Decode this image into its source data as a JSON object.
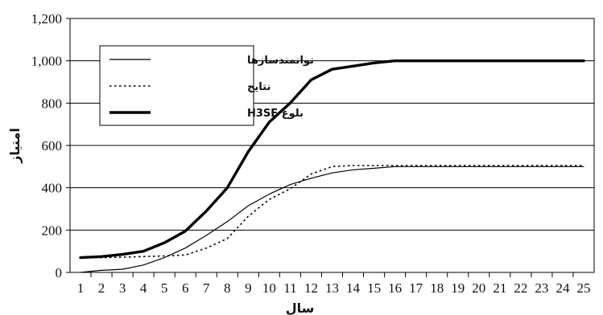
{
  "chart_data": {
    "type": "line",
    "title": "",
    "xlabel": "سال",
    "ylabel": "امتیاز",
    "x": [
      1,
      2,
      3,
      4,
      5,
      6,
      7,
      8,
      9,
      10,
      11,
      12,
      13,
      14,
      15,
      16,
      17,
      18,
      19,
      20,
      21,
      22,
      23,
      24,
      25
    ],
    "ylim": [
      0,
      1200
    ],
    "yticks": [
      "0",
      "200",
      "400",
      "600",
      "800",
      "1,000",
      "1,200"
    ],
    "ytick_values": [
      0,
      200,
      400,
      600,
      800,
      1000,
      1200
    ],
    "grid": "horizontal",
    "legend_position": "top-left",
    "series": [
      {
        "name": "توانمندسازها",
        "style": "thin-solid",
        "color": "#000000",
        "values": [
          0,
          10,
          15,
          35,
          70,
          115,
          175,
          240,
          315,
          370,
          415,
          445,
          470,
          485,
          492,
          500,
          500,
          500,
          500,
          500,
          500,
          500,
          500,
          500,
          500
        ]
      },
      {
        "name": "نتایج",
        "style": "dotted",
        "color": "#000000",
        "values": [
          70,
          70,
          72,
          75,
          78,
          82,
          115,
          160,
          265,
          345,
          395,
          465,
          500,
          505,
          505,
          505,
          505,
          505,
          505,
          505,
          505,
          505,
          505,
          505,
          505
        ]
      },
      {
        "name": "بلوغ H3SE",
        "style": "thick-solid",
        "color": "#000000",
        "values": [
          70,
          75,
          85,
          100,
          140,
          195,
          290,
          400,
          570,
          710,
          800,
          910,
          960,
          975,
          990,
          1000,
          1000,
          1000,
          1000,
          1000,
          1000,
          1000,
          1000,
          1000,
          1000
        ]
      }
    ]
  }
}
